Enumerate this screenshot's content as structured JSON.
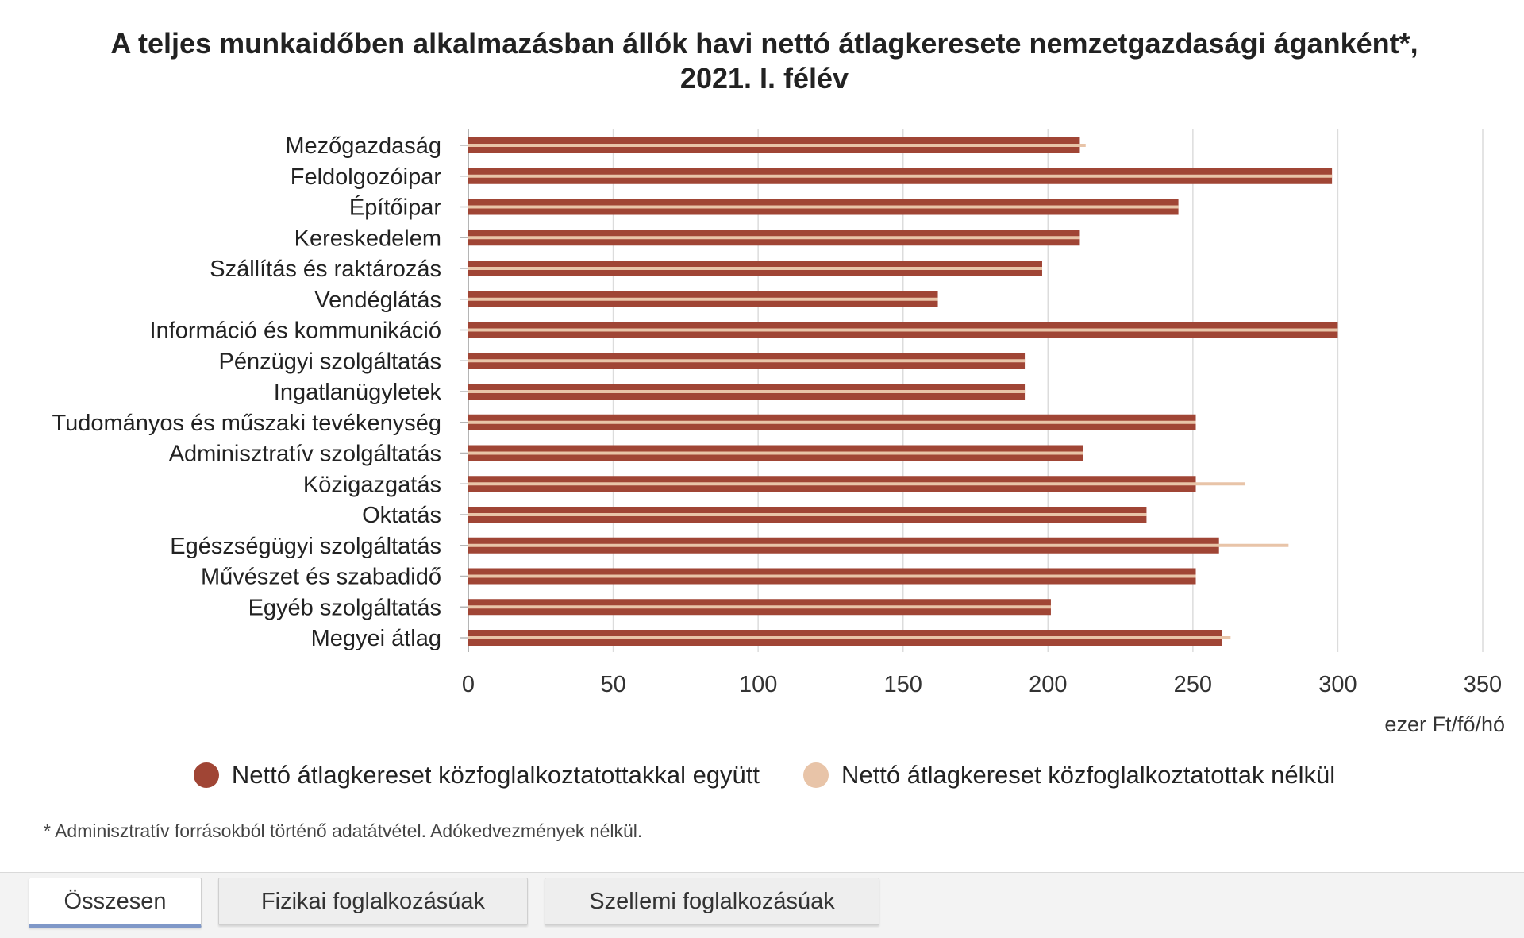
{
  "chart_data": {
    "type": "bar",
    "orientation": "horizontal",
    "title_line1": "A teljes munkaidőben alkalmazásban állók havi nettó átlagkeresete nemzetgazdasági áganként*,",
    "title_line2": "2021. I. félév",
    "categories": [
      "Mezőgazdaság",
      "Feldolgozóipar",
      "Építőipar",
      "Kereskedelem",
      "Szállítás és raktározás",
      "Vendéglátás",
      "Információ és kommunikáció",
      "Pénzügyi szolgáltatás",
      "Ingatlanügyletek",
      "Tudományos és műszaki tevékenység",
      "Adminisztratív szolgáltatás",
      "Közigazgatás",
      "Oktatás",
      "Egészségügyi szolgáltatás",
      "Művészet és szabadidő",
      "Egyéb szolgáltatás",
      "Megyei átlag"
    ],
    "series": [
      {
        "name": "Nettó átlagkereset közfoglalkoztatottakkal együtt",
        "color": "#a04535",
        "values": [
          211,
          298,
          245,
          211,
          198,
          162,
          300,
          192,
          192,
          251,
          212,
          251,
          234,
          259,
          251,
          201,
          260
        ]
      },
      {
        "name": "Nettó átlagkereset közfoglalkoztatottak nélkül",
        "color": "#e8c4a8",
        "values": [
          213,
          298,
          245,
          211,
          198,
          162,
          300,
          192,
          192,
          251,
          212,
          268,
          234,
          283,
          251,
          201,
          263
        ]
      }
    ],
    "xlim": [
      0,
      350
    ],
    "xticks": [
      0,
      50,
      100,
      150,
      200,
      250,
      300,
      350
    ],
    "xlabel": "ezer Ft/fő/hó",
    "grid": true,
    "legend_position": "bottom"
  },
  "footnote": "* Adminisztratív forrásokból történő adatátvétel. Adókedvezmények nélkül.",
  "tabs": [
    {
      "label": "Összesen",
      "active": true
    },
    {
      "label": "Fizikai foglalkozásúak",
      "active": false
    },
    {
      "label": "Szellemi foglalkozásúak",
      "active": false
    }
  ]
}
